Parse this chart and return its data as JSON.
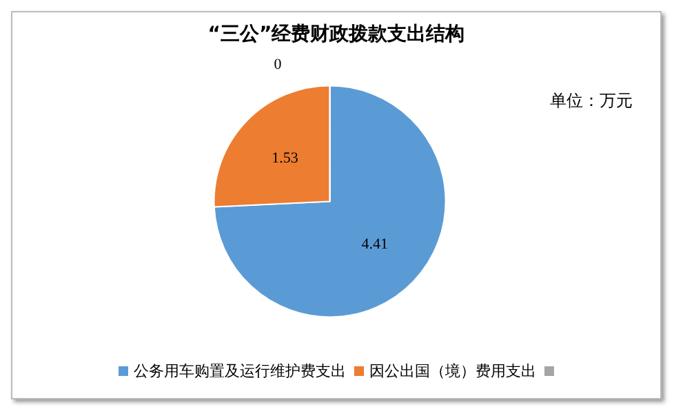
{
  "chart_data": {
    "type": "pie",
    "title": "“三公”经费财政拨款支出结构",
    "annotations": [
      "单位：万元"
    ],
    "categories": [
      "公务用车购置及运行维护费支出",
      "因公出国（境）费用支出",
      null
    ],
    "values": [
      4.41,
      1.53,
      0
    ],
    "value_labels": [
      "4.41",
      "1.53",
      "0"
    ],
    "colors": [
      "#5b9bd5",
      "#ed7d31",
      "#a5a5a5"
    ],
    "legend": "bottom"
  }
}
